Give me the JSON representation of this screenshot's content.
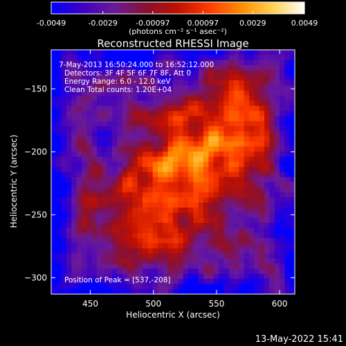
{
  "colorbar": {
    "tick_labels": [
      "-0.0049",
      "-0.0029",
      "-0.00097",
      "0.00097",
      "0.0029",
      "0.0049"
    ],
    "tick_values": [
      -0.0049,
      -0.0029,
      -0.00097,
      0.00097,
      0.0029,
      0.0049
    ],
    "range": [
      -0.0049,
      0.0049
    ],
    "units_label": "(photons cm⁻² s⁻¹ asec⁻²)",
    "colors": [
      "#0000ff",
      "#4000c0",
      "#6a1a9a",
      "#8a1030",
      "#c01000",
      "#ff3c00",
      "#ff8c00",
      "#ffd050",
      "#ffffff"
    ]
  },
  "chart_data": {
    "type": "heatmap",
    "title": "Reconstructed RHESSI Image",
    "xlabel": "Heliocentric X (arcsec)",
    "ylabel": "Heliocentric Y (arcsec)",
    "xlim": [
      419,
      612
    ],
    "ylim": [
      -313,
      -119
    ],
    "x_ticks": [
      450,
      500,
      550,
      600
    ],
    "x_tick_labels": [
      "450",
      "500",
      "550",
      "600"
    ],
    "y_ticks": [
      -150,
      -200,
      -250,
      -300
    ],
    "y_tick_labels": [
      "−150",
      "−200",
      "−250",
      "−300"
    ],
    "annotations": [
      " 7-May-2013 16:50:24.000 to 16:52:12.000",
      "Detectors: 3F 4F 5F 6F 7F 8F, Att 0",
      "Energy Range: 6.0 - 12.0 keV",
      "Clean    Total counts: 1.20E+04"
    ],
    "peak_label": "Position of Peak = [537,-208]",
    "peak_position": [
      537,
      -208
    ],
    "total_counts": "1.20E+04",
    "energy_range_kev": [
      6.0,
      12.0
    ]
  },
  "footer": {
    "timestamp": "13-May-2022 15:41"
  }
}
